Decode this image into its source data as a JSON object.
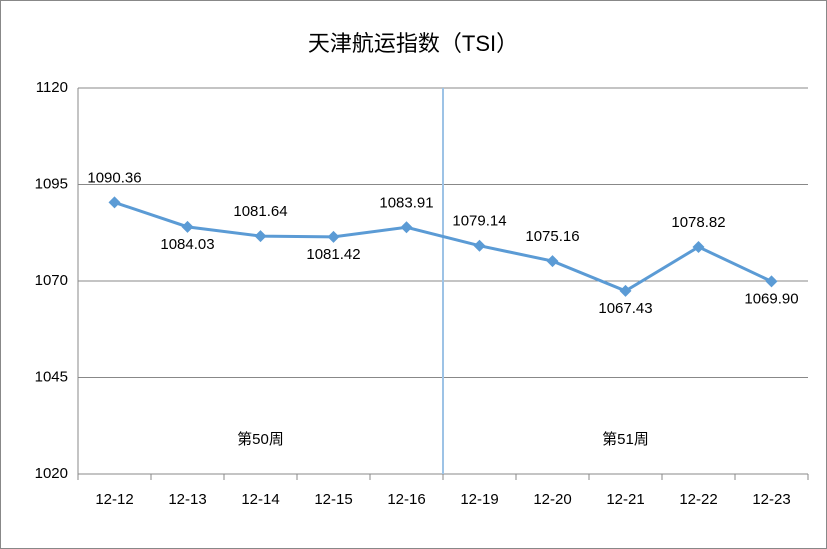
{
  "chart_data": {
    "type": "line",
    "title": "天津航运指数（TSI）",
    "categories": [
      "12-12",
      "12-13",
      "12-14",
      "12-15",
      "12-16",
      "12-19",
      "12-20",
      "12-21",
      "12-22",
      "12-23"
    ],
    "series": [
      {
        "color": "#5b9bd5",
        "values": [
          1090.36,
          1084.03,
          1081.64,
          1081.42,
          1083.91,
          1079.14,
          1075.16,
          1067.43,
          1078.82,
          1069.9
        ],
        "value_labels": [
          "1090.36",
          "1084.03",
          "1081.64",
          "1081.42",
          "1083.91",
          "1079.14",
          "1075.16",
          "1067.43",
          "1078.82",
          "1069.90"
        ]
      }
    ],
    "ylim": [
      1020,
      1120
    ],
    "yticks": [
      1020,
      1045,
      1070,
      1095,
      1120
    ],
    "grid": true,
    "annotations": [
      "第50周",
      "第51周"
    ]
  }
}
